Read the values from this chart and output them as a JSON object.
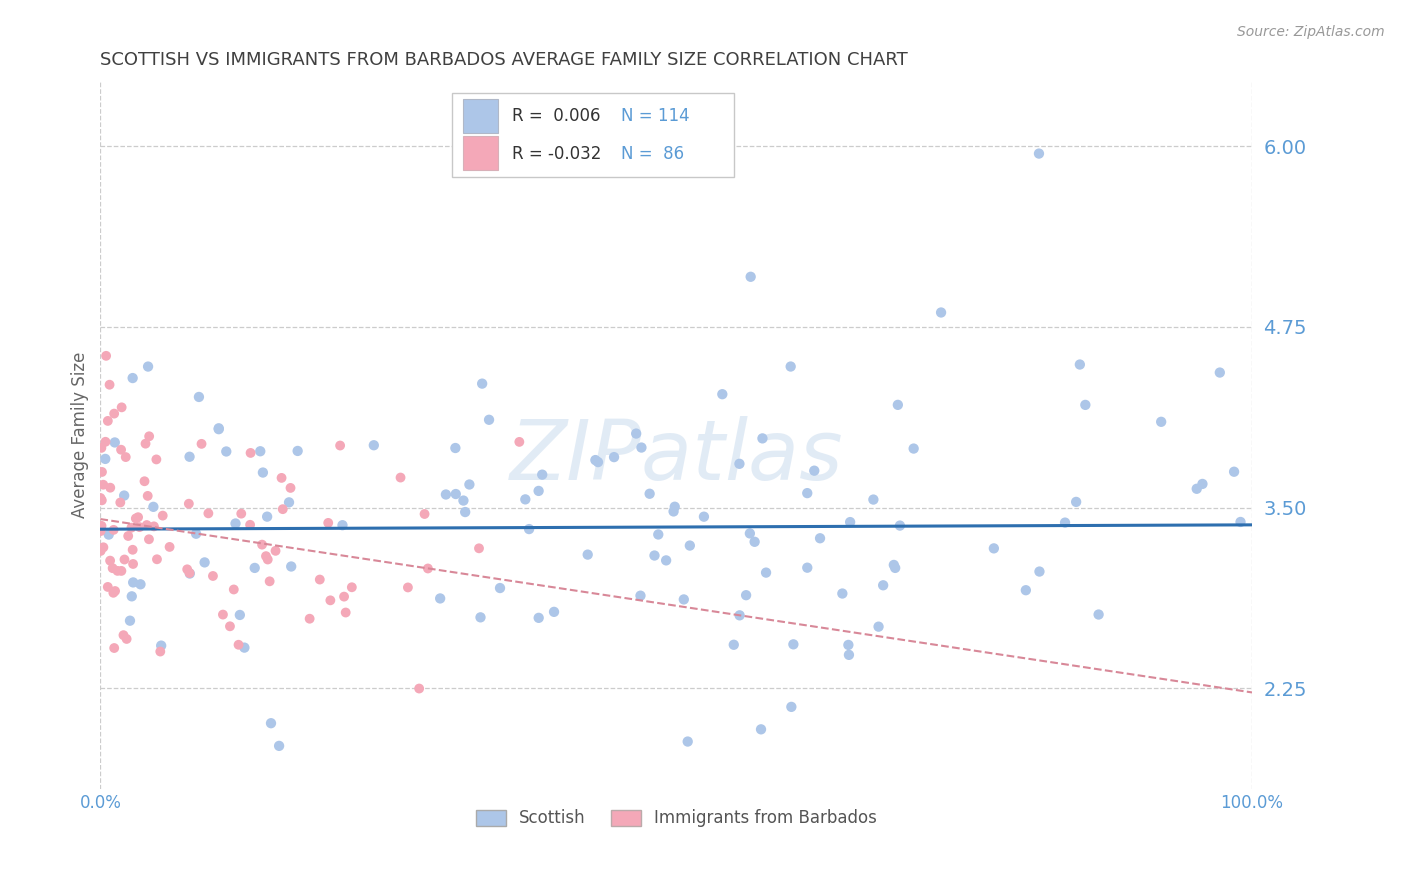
{
  "title": "SCOTTISH VS IMMIGRANTS FROM BARBADOS AVERAGE FAMILY SIZE CORRELATION CHART",
  "source": "Source: ZipAtlas.com",
  "ylabel": "Average Family Size",
  "xlim": [
    0,
    1
  ],
  "ylim": [
    1.55,
    6.45
  ],
  "yticks": [
    2.25,
    3.5,
    4.75,
    6.0
  ],
  "ytick_labels": [
    "2.25",
    "3.50",
    "4.75",
    "6.00"
  ],
  "xtick_labels": [
    "0.0%",
    "100.0%"
  ],
  "ytick_color": "#5b9bd5",
  "background_color": "#ffffff",
  "scatter_blue_color": "#adc6e8",
  "scatter_pink_color": "#f4a8b8",
  "line_blue_color": "#2e6faf",
  "line_pink_color": "#d88898",
  "grid_color": "#cccccc",
  "title_color": "#404040",
  "blue_scatter_seed": 101,
  "pink_scatter_seed": 202,
  "blue_n": 114,
  "pink_n": 86
}
